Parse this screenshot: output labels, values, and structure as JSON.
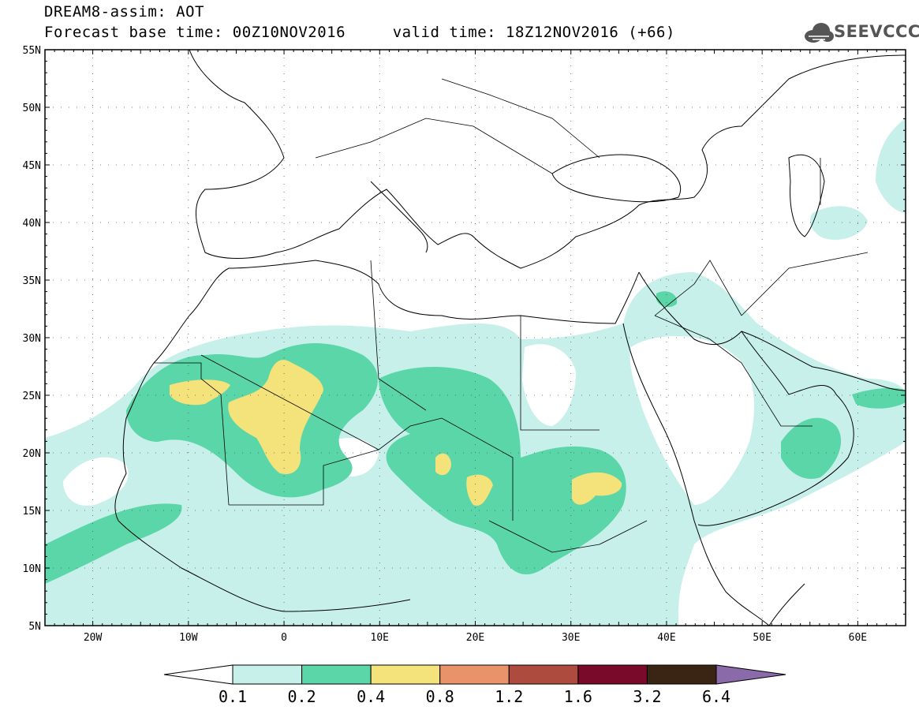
{
  "header": {
    "line1": "DREAM8-assim: AOT",
    "line2": "Forecast base time: 00Z10NOV2016     valid time: 18Z12NOV2016 (+66)"
  },
  "logo": {
    "text": "SEEVCCC",
    "icon": "cloud-icon"
  },
  "map": {
    "lon_range": [
      -25,
      65
    ],
    "lat_range": [
      5,
      55
    ],
    "lat_labels": [
      "55N",
      "50N",
      "45N",
      "40N",
      "35N",
      "30N",
      "25N",
      "20N",
      "15N",
      "10N",
      "5N"
    ],
    "lon_labels": [
      "20W",
      "10W",
      "0",
      "10E",
      "20E",
      "30E",
      "40E",
      "50E",
      "60E"
    ],
    "grid": true
  },
  "colorbar": {
    "labels": [
      "0.1",
      "0.2",
      "0.4",
      "0.8",
      "1.2",
      "1.6",
      "3.2",
      "6.4"
    ],
    "colors": [
      "#ffffff",
      "#c8f0ea",
      "#5ad6a8",
      "#f4e27a",
      "#e8936a",
      "#ad4c3e",
      "#7a0a2a",
      "#3a2414",
      "#8a6aa8"
    ]
  }
}
